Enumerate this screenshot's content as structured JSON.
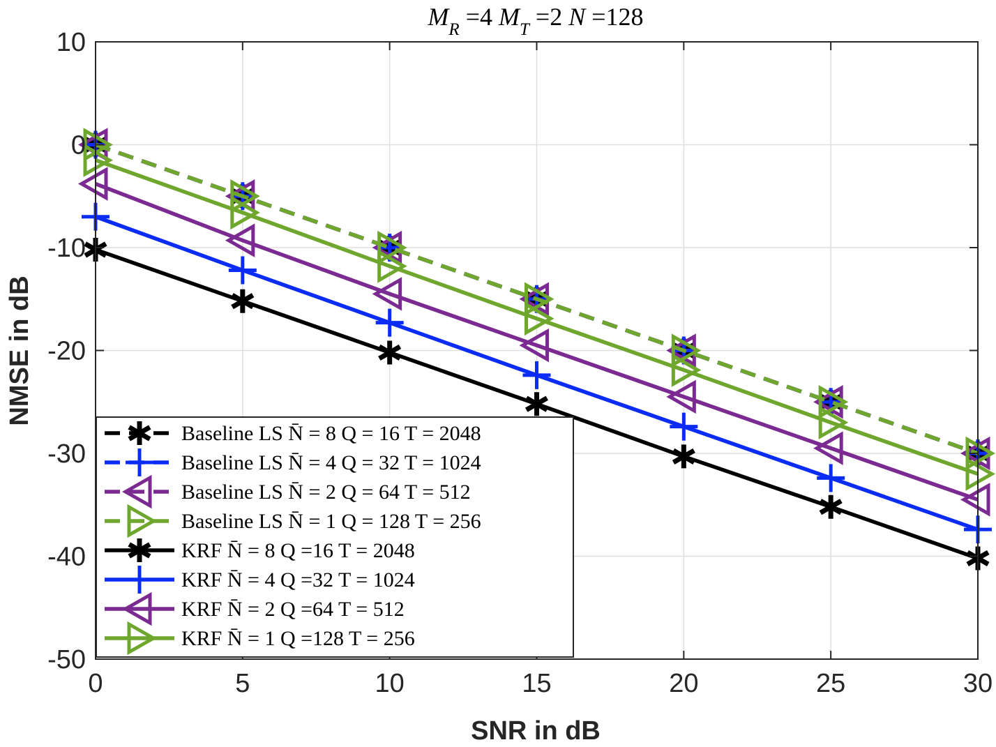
{
  "chart_data": {
    "type": "line",
    "title": "M_R =4 M_T =2 N =128",
    "title_parts": [
      {
        "t": "M",
        "italic": true
      },
      {
        "t": "R",
        "italic": true,
        "sub": true
      },
      {
        "t": " =4 ",
        "italic": false
      },
      {
        "t": "M",
        "italic": true
      },
      {
        "t": "T",
        "italic": true,
        "sub": true
      },
      {
        "t": " =2 ",
        "italic": false
      },
      {
        "t": "N",
        "italic": true
      },
      {
        "t": " =128",
        "italic": false
      }
    ],
    "xlabel": "SNR in dB",
    "ylabel": "NMSE in dB",
    "xlim": [
      0,
      30
    ],
    "ylim": [
      -50,
      10
    ],
    "xticks": [
      0,
      5,
      10,
      15,
      20,
      25,
      30
    ],
    "yticks": [
      10,
      0,
      -10,
      -20,
      -30,
      -40,
      -50
    ],
    "x": [
      0,
      5,
      10,
      15,
      20,
      25,
      30
    ],
    "grid": true,
    "legend_position": "bottom-left",
    "series": [
      {
        "name": "Baseline LS N̄ = 8 Q = 16 T = 2048",
        "label": "Baseline LS N̄ = 8 Q = 16 T = 2048",
        "color": "#000000",
        "dash": true,
        "marker": "asterisk",
        "values": [
          0,
          -5,
          -10,
          -15,
          -20,
          -25,
          -30
        ]
      },
      {
        "name": "Baseline LS N̄ = 4 Q = 32 T = 1024",
        "label": "Baseline LS N̄ = 4 Q = 32 T = 1024",
        "color": "#0a2cf5",
        "dash": true,
        "marker": "plus",
        "values": [
          0,
          -5,
          -10,
          -15,
          -20,
          -25,
          -30
        ]
      },
      {
        "name": "Baseline LS N̄ = 2 Q = 64 T = 512",
        "label": "Baseline LS N̄ = 2 Q = 64 T = 512",
        "color": "#7b2a92",
        "dash": true,
        "marker": "triangle-left",
        "values": [
          0,
          -5,
          -10,
          -15,
          -20,
          -25,
          -30
        ]
      },
      {
        "name": "Baseline LS N̄ = 1 Q = 128 T = 256",
        "label": "Baseline LS N̄ = 1 Q = 128 T = 256",
        "color": "#6fa62e",
        "dash": true,
        "marker": "triangle-right",
        "values": [
          0,
          -5,
          -10,
          -15,
          -20,
          -25,
          -30
        ]
      },
      {
        "name": "KRF N̄ = 8 Q =16 T = 2048",
        "label": "KRF N̄ = 8 Q =16 T = 2048",
        "color": "#000000",
        "dash": false,
        "marker": "asterisk",
        "values": [
          -10.2,
          -15.2,
          -20.2,
          -25.2,
          -30.3,
          -35.2,
          -40.2
        ]
      },
      {
        "name": "KRF N̄ = 4 Q =32 T = 1024",
        "label": "KRF N̄ = 4 Q =32 T = 1024",
        "color": "#0a2cf5",
        "dash": false,
        "marker": "plus",
        "values": [
          -7.0,
          -12.2,
          -17.3,
          -22.4,
          -27.4,
          -32.4,
          -37.4
        ]
      },
      {
        "name": "KRF N̄ = 2 Q =64 T = 512",
        "label": "KRF N̄ = 2 Q =64 T = 512",
        "color": "#7b2a92",
        "dash": false,
        "marker": "triangle-left",
        "values": [
          -3.8,
          -9.3,
          -14.5,
          -19.5,
          -24.5,
          -29.5,
          -34.5
        ]
      },
      {
        "name": "KRF N̄ = 1 Q =128 T = 256",
        "label": "KRF N̄ = 1 Q =128 T = 256",
        "color": "#6fa62e",
        "dash": false,
        "marker": "triangle-right",
        "values": [
          -1.5,
          -6.6,
          -11.8,
          -16.9,
          -21.9,
          -27.0,
          -32.0
        ]
      }
    ]
  }
}
